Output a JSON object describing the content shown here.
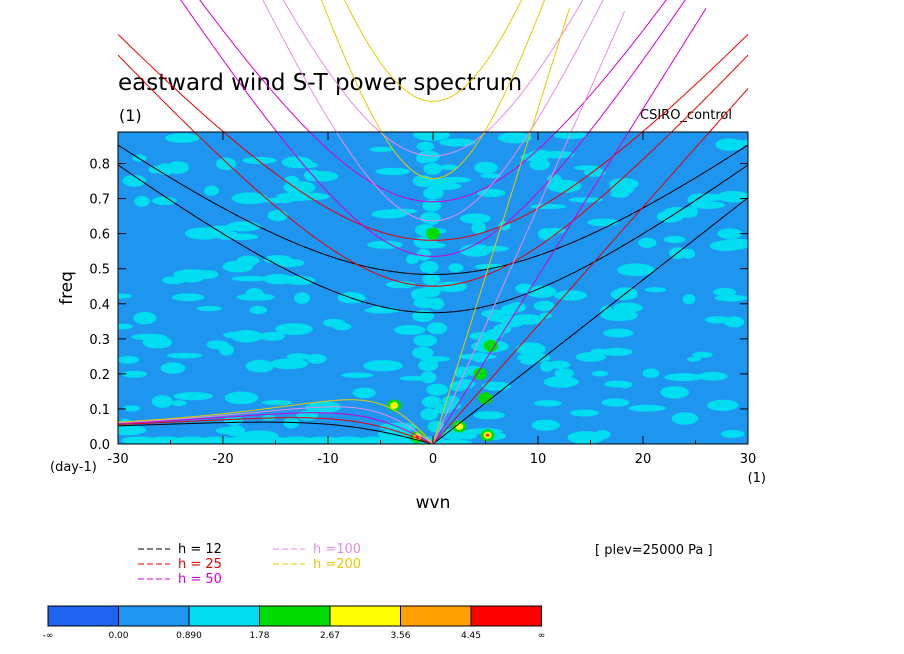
{
  "chart_data": {
    "type": "heatmap",
    "title": "eastward wind S-T power spectrum",
    "subtitle_left": "(1)",
    "subtitle_right": "CSIRO_control",
    "xlabel": "wvn",
    "ylabel": "freq",
    "x_unit": "(1)",
    "y_unit": "(day-1)",
    "xlim": [
      -30,
      30
    ],
    "ylim": [
      0,
      0.89
    ],
    "x_ticks": [
      -30,
      -20,
      -10,
      0,
      10,
      20,
      30
    ],
    "x_tick_labels": [
      "-30",
      "-20",
      "-10",
      "0",
      "10",
      "20",
      "30"
    ],
    "y_ticks": [
      0,
      0.1,
      0.2,
      0.3,
      0.4,
      0.5,
      0.6,
      0.7,
      0.8
    ],
    "y_tick_labels": [
      "0.0",
      "0.1",
      "0.2",
      "0.3",
      "0.4",
      "0.5",
      "0.6",
      "0.7",
      "0.8"
    ],
    "annotation": "[ plev=25000 Pa ]",
    "colorbar": {
      "labels": [
        "-∞",
        "0.00",
        "0.890",
        "1.78",
        "2.67",
        "3.56",
        "4.45",
        "∞"
      ],
      "colors": [
        "#1e64f0",
        "#1e96f0",
        "#00dcf0",
        "#00dc00",
        "#ffff00",
        "#ffa000",
        "#ff0000"
      ]
    },
    "dispersion_legend": [
      {
        "label": "h = 12",
        "color": "#000000"
      },
      {
        "label": "h = 25",
        "color": "#e60000"
      },
      {
        "label": "h = 50",
        "color": "#d200d2"
      },
      {
        "label": "h =100",
        "color": "#e68ce6"
      },
      {
        "label": "h =200",
        "color": "#e6c800"
      }
    ],
    "dispersion_curves": {
      "equivalent_depths_m": [
        12,
        25,
        50,
        100,
        200
      ],
      "families": [
        "kelvin",
        "equatorial_rossby_n1",
        "inertia_gravity_n1",
        "inertia_gravity_n2"
      ]
    },
    "spectrum_features": [
      {
        "wvn": 0,
        "freq": 0.6,
        "level": "1.78-2.67"
      },
      {
        "wvn": 5.5,
        "freq": 0.28,
        "level": "1.78-2.67"
      },
      {
        "wvn": 4.5,
        "freq": 0.2,
        "level": "1.78-2.67"
      },
      {
        "wvn": 5,
        "freq": 0.13,
        "level": "1.78-2.67"
      },
      {
        "wvn": -3.7,
        "freq": 0.11,
        "level": "2.67-3.56"
      },
      {
        "wvn": 2.5,
        "freq": 0.05,
        "level": "2.67-3.56"
      },
      {
        "wvn": 5.2,
        "freq": 0.025,
        "level": "4.45-inf"
      },
      {
        "wvn": -1.5,
        "freq": 0.02,
        "level": "4.45-inf"
      }
    ]
  }
}
